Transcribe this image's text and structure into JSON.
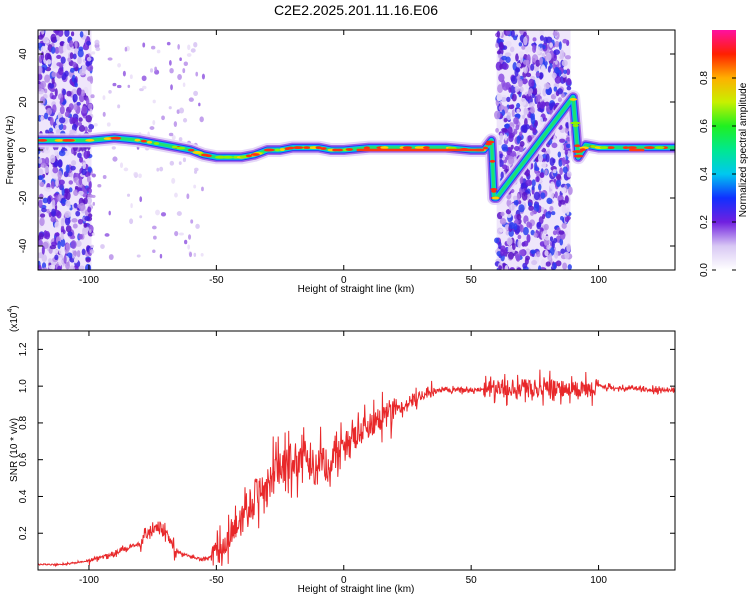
{
  "title": "C2E2.2025.201.11.16.E06",
  "chart_data": [
    {
      "type": "heatmap",
      "xlabel": "Height of straight line (km)",
      "ylabel": "Frequency (Hz)",
      "xlim": [
        -120,
        130
      ],
      "ylim": [
        -50,
        50
      ],
      "x_ticks": [
        "-100",
        "-50",
        "0",
        "50",
        "100"
      ],
      "y_ticks": [
        "40",
        "20",
        "0",
        "-20",
        "-40"
      ],
      "colorbar": {
        "label": "Normalized spectral amplitude",
        "range": [
          0,
          1
        ],
        "ticks": [
          "0.0",
          "0.2",
          "0.4",
          "0.6",
          "0.8"
        ],
        "colormap": "rainbow"
      },
      "noise_regions_km": [
        [
          -120,
          -99
        ],
        [
          60,
          89
        ]
      ],
      "ridge": {
        "x": [
          -120,
          -110,
          -100,
          -90,
          -80,
          -70,
          -60,
          -55,
          -50,
          -45,
          -40,
          -35,
          -30,
          -25,
          -20,
          -15,
          -10,
          -5,
          0,
          10,
          20,
          30,
          40,
          50,
          55,
          58,
          59,
          60,
          90,
          91,
          92,
          95,
          100,
          110,
          120,
          130
        ],
        "y": [
          4,
          4,
          4,
          5,
          4,
          2,
          0,
          -2,
          -3,
          -3,
          -3,
          -2,
          0,
          0,
          1,
          1,
          1,
          0,
          0,
          1,
          1,
          1,
          1,
          0,
          0,
          4,
          -20,
          -20,
          22,
          10,
          -3,
          2,
          1,
          1,
          1,
          1
        ]
      }
    },
    {
      "type": "line",
      "xlabel": "Height of straight line (km)",
      "ylabel": "SNR (10 * v/v)",
      "y_multiplier": "(x10",
      "y_multiplier_exp": "4",
      "y_multiplier_close": ")",
      "xlim": [
        -120,
        130
      ],
      "ylim": [
        0,
        13000
      ],
      "x_ticks": [
        "-100",
        "-50",
        "0",
        "50",
        "100"
      ],
      "y_ticks": [
        "0.2",
        "0.4",
        "0.6",
        "0.8",
        "1.0",
        "1.2"
      ],
      "color": "#e8282a",
      "series": [
        {
          "x": [
            -120,
            -110,
            -100,
            -95,
            -90,
            -85,
            -80,
            -76,
            -72,
            -70,
            -68,
            -65,
            -62,
            -58,
            -55,
            -52,
            -50,
            -48,
            -45,
            -42,
            -40,
            -35,
            -30,
            -25,
            -20,
            -15,
            -10,
            -5,
            0,
            5,
            10,
            15,
            20,
            25,
            30,
            35,
            40,
            45,
            50,
            55,
            60,
            65,
            70,
            75,
            80,
            85,
            90,
            95,
            100,
            105,
            110,
            115,
            120,
            125,
            130
          ],
          "y": [
            300,
            300,
            500,
            700,
            900,
            1200,
            1500,
            2000,
            2400,
            2000,
            1400,
            1000,
            800,
            600,
            600,
            700,
            900,
            1200,
            1700,
            2400,
            3000,
            4000,
            4800,
            5400,
            6000,
            5800,
            5600,
            6000,
            6700,
            7300,
            7900,
            8300,
            8700,
            9100,
            9500,
            9700,
            9800,
            9800,
            9800,
            9800,
            9900,
            9900,
            10000,
            9900,
            9900,
            9900,
            9800,
            9800,
            10000,
            9900,
            9900,
            9900,
            9800,
            9800,
            9800
          ]
        }
      ]
    }
  ]
}
